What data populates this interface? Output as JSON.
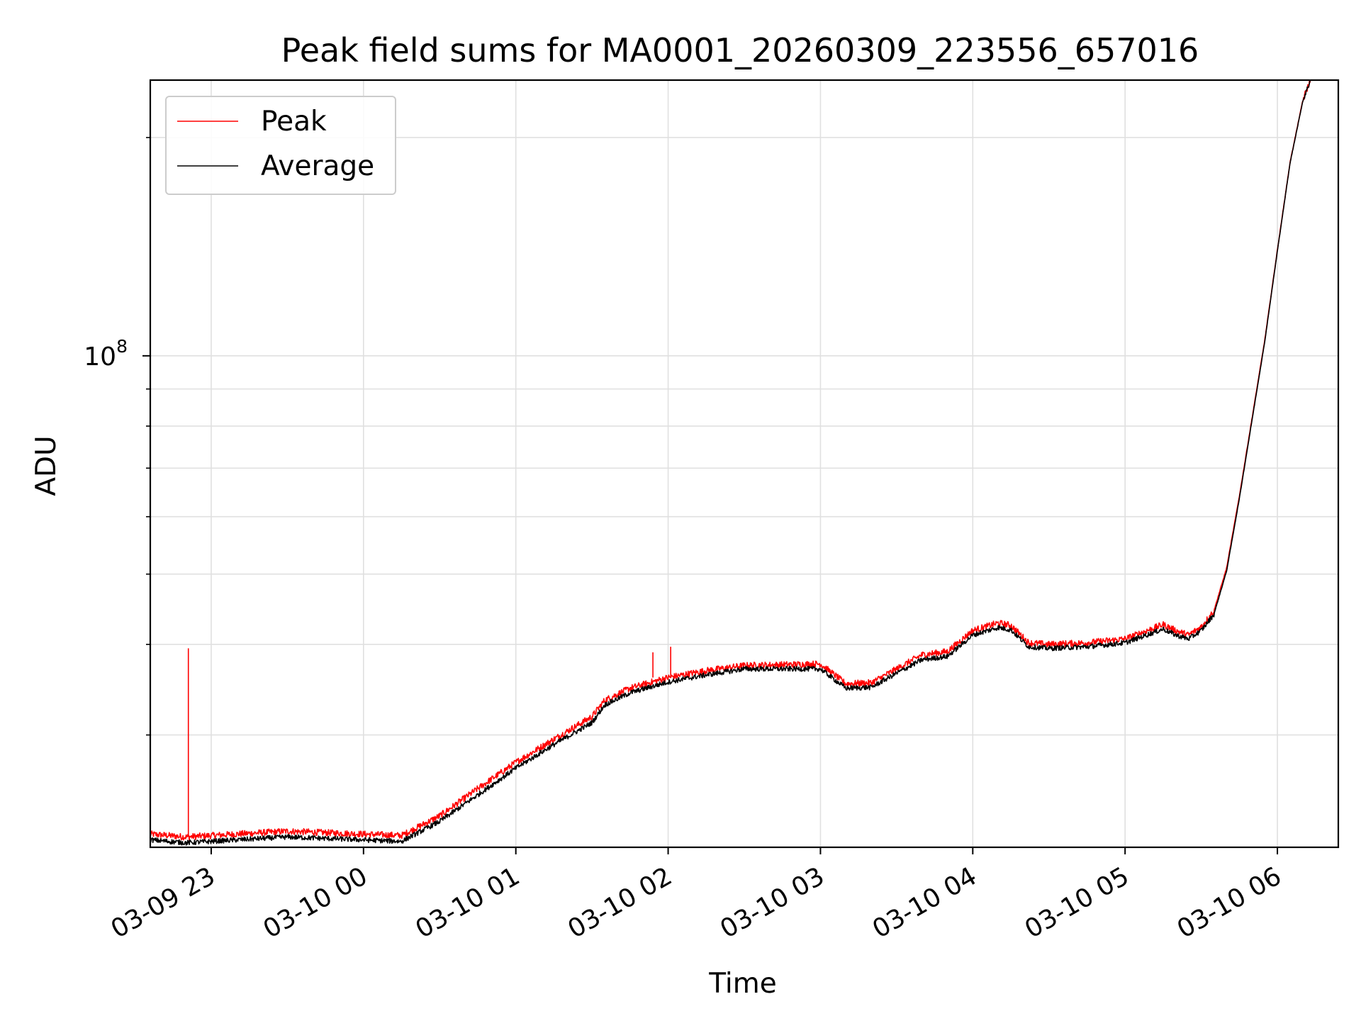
{
  "chart_data": {
    "type": "line",
    "title": "Peak field sums for MA0001_20260309_223556_657016",
    "xlabel": "Time",
    "ylabel": "ADU",
    "x_axis": {
      "start": "2026-03-09 22:36",
      "end": "2026-03-10 06:24",
      "tick_labels": [
        "03-09 23",
        "03-10 00",
        "03-10 01",
        "03-10 02",
        "03-10 03",
        "03-10 04",
        "03-10 05",
        "03-10 06"
      ],
      "tick_values": [
        "2026-03-09 23:00",
        "2026-03-10 00:00",
        "2026-03-10 01:00",
        "2026-03-10 02:00",
        "2026-03-10 03:00",
        "2026-03-10 04:00",
        "2026-03-10 05:00",
        "2026-03-10 06:00"
      ]
    },
    "y_axis": {
      "scale": "log",
      "ylim": [
        21000000,
        240000000
      ],
      "labeled_tick": 100000000,
      "labeled_tick_text": {
        "base": "10",
        "exponent": "8"
      },
      "minor_ticks": [
        30000000,
        40000000,
        50000000,
        60000000,
        70000000,
        80000000,
        90000000,
        200000000
      ]
    },
    "grid": true,
    "legend_position": "top-left",
    "series": [
      {
        "name": "Peak",
        "color": "#ff0000",
        "x": [
          "2026-03-09 22:36",
          "2026-03-09 22:50",
          "2026-03-09 23:00",
          "2026-03-09 23:30",
          "2026-03-10 00:00",
          "2026-03-10 00:15",
          "2026-03-10 00:30",
          "2026-03-10 00:45",
          "2026-03-10 01:00",
          "2026-03-10 01:15",
          "2026-03-10 01:30",
          "2026-03-10 01:35",
          "2026-03-10 01:45",
          "2026-03-10 02:00",
          "2026-03-10 02:15",
          "2026-03-10 02:30",
          "2026-03-10 02:45",
          "2026-03-10 03:00",
          "2026-03-10 03:10",
          "2026-03-10 03:20",
          "2026-03-10 03:30",
          "2026-03-10 03:40",
          "2026-03-10 03:50",
          "2026-03-10 04:00",
          "2026-03-10 04:10",
          "2026-03-10 04:15",
          "2026-03-10 04:22",
          "2026-03-10 04:30",
          "2026-03-10 04:45",
          "2026-03-10 05:00",
          "2026-03-10 05:15",
          "2026-03-10 05:20",
          "2026-03-10 05:25",
          "2026-03-10 05:30",
          "2026-03-10 05:35",
          "2026-03-10 05:40",
          "2026-03-10 05:45",
          "2026-03-10 05:50",
          "2026-03-10 05:55",
          "2026-03-10 06:00",
          "2026-03-10 06:05",
          "2026-03-10 06:10",
          "2026-03-10 06:13"
        ],
        "values": [
          21900000,
          21700000,
          21800000,
          22100000,
          21900000,
          21800000,
          23200000,
          25300000,
          27500000,
          29600000,
          31800000,
          33500000,
          34800000,
          36000000,
          36800000,
          37400000,
          37500000,
          37600000,
          35300000,
          35400000,
          37000000,
          38700000,
          39100000,
          41800000,
          42800000,
          42500000,
          40200000,
          40000000,
          40200000,
          40700000,
          42600000,
          41800000,
          41200000,
          42300000,
          44500000,
          51000000,
          64000000,
          82000000,
          105000000,
          140000000,
          185000000,
          225000000,
          240000000
        ],
        "spikes": [
          {
            "x": "2026-03-09 22:51",
            "value": 39500000
          },
          {
            "x": "2026-03-10 01:54",
            "value": 39000000
          },
          {
            "x": "2026-03-10 02:01",
            "value": 39700000
          }
        ]
      },
      {
        "name": "Average",
        "color": "#000000",
        "x": [
          "2026-03-09 22:36",
          "2026-03-09 22:50",
          "2026-03-09 23:00",
          "2026-03-09 23:30",
          "2026-03-10 00:00",
          "2026-03-10 00:15",
          "2026-03-10 00:30",
          "2026-03-10 00:45",
          "2026-03-10 01:00",
          "2026-03-10 01:15",
          "2026-03-10 01:30",
          "2026-03-10 01:35",
          "2026-03-10 01:45",
          "2026-03-10 02:00",
          "2026-03-10 02:15",
          "2026-03-10 02:30",
          "2026-03-10 02:45",
          "2026-03-10 03:00",
          "2026-03-10 03:10",
          "2026-03-10 03:20",
          "2026-03-10 03:30",
          "2026-03-10 03:40",
          "2026-03-10 03:50",
          "2026-03-10 04:00",
          "2026-03-10 04:10",
          "2026-03-10 04:15",
          "2026-03-10 04:22",
          "2026-03-10 04:30",
          "2026-03-10 04:45",
          "2026-03-10 05:00",
          "2026-03-10 05:15",
          "2026-03-10 05:20",
          "2026-03-10 05:25",
          "2026-03-10 05:30",
          "2026-03-10 05:35",
          "2026-03-10 05:40",
          "2026-03-10 05:45",
          "2026-03-10 05:50",
          "2026-03-10 05:55",
          "2026-03-10 06:00",
          "2026-03-10 06:05",
          "2026-03-10 06:10",
          "2026-03-10 06:13"
        ],
        "values": [
          21500000,
          21300000,
          21400000,
          21700000,
          21500000,
          21400000,
          22800000,
          24800000,
          27000000,
          29100000,
          31200000,
          33000000,
          34300000,
          35500000,
          36300000,
          37000000,
          37000000,
          37000000,
          34800000,
          34900000,
          36500000,
          38100000,
          38500000,
          41200000,
          42200000,
          41900000,
          39700000,
          39500000,
          39700000,
          40200000,
          42000000,
          41200000,
          40700000,
          41800000,
          44000000,
          50500000,
          63500000,
          81500000,
          104500000,
          139500000,
          184500000,
          224500000,
          240000000
        ]
      }
    ]
  }
}
